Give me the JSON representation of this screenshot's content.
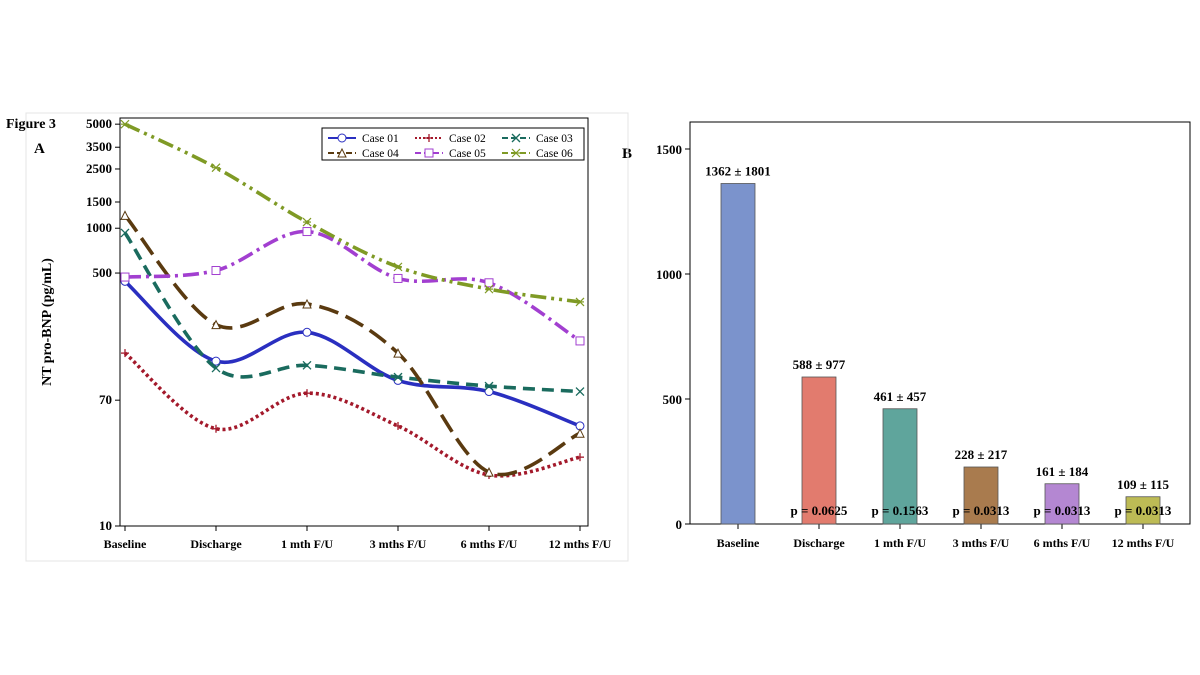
{
  "figure_label": "Figure 3",
  "panel_a_label": "A",
  "panel_b_label": "B",
  "colors": {
    "case01": "#2a2fc0",
    "case02": "#a3192b",
    "case03": "#1a6b5e",
    "case04": "#5a3a10",
    "case05": "#a23fd0",
    "case06": "#7f9a25",
    "bar_baseline": "#7b93cc",
    "bar_discharge": "#e27b6e",
    "bar_1mth": "#5fa59c",
    "bar_3mths": "#a97b4e",
    "bar_6mths": "#b487d2",
    "bar_12mths": "#bdbb55"
  },
  "chart_data": [
    {
      "type": "line",
      "panel": "A",
      "ylabel": "NT pro-BNP (pg/mL)",
      "xlabel": "",
      "yscale": "log",
      "ylim": [
        10,
        5500
      ],
      "yticks": [
        10,
        70,
        500,
        1000,
        1500,
        2500,
        3500,
        5000
      ],
      "categories": [
        "Baseline",
        "Discharge",
        "1 mth F/U",
        "3 mths F/U",
        "6 mths F/U",
        "12 mths F/U"
      ],
      "legend_position": "top-right",
      "series": [
        {
          "name": "Case 01",
          "marker": "circle",
          "dash": "solid",
          "values": [
            440,
            128,
            200,
            95,
            80,
            47
          ]
        },
        {
          "name": "Case 02",
          "marker": "plus",
          "dash": "dotted",
          "values": [
            145,
            45,
            78,
            47,
            22,
            29
          ]
        },
        {
          "name": "Case 03",
          "marker": "x",
          "dash": "dashed",
          "values": [
            930,
            115,
            120,
            100,
            87,
            80
          ]
        },
        {
          "name": "Case 04",
          "marker": "triangle",
          "dash": "longdash",
          "values": [
            1220,
            225,
            310,
            145,
            23,
            42
          ]
        },
        {
          "name": "Case 05",
          "marker": "square",
          "dash": "dashdot",
          "values": [
            470,
            520,
            950,
            460,
            430,
            175
          ]
        },
        {
          "name": "Case 06",
          "marker": "asterisk",
          "dash": "dashdotdot",
          "values": [
            5000,
            2550,
            1100,
            550,
            390,
            320
          ]
        }
      ]
    },
    {
      "type": "bar",
      "panel": "B",
      "xlabel": "",
      "ylabel": "",
      "ylim": [
        0,
        1500
      ],
      "yticks": [
        0,
        500,
        1000,
        1500
      ],
      "categories": [
        "Baseline",
        "Discharge",
        "1 mth F/U",
        "3 mths F/U",
        "6 mths F/U",
        "12 mths F/U"
      ],
      "values": [
        1362,
        588,
        461,
        228,
        161,
        109
      ],
      "value_labels": [
        "1362 ± 1801",
        "588 ± 977",
        "461 ± 457",
        "228 ± 217",
        "161 ± 184",
        "109 ± 115"
      ],
      "p_labels": [
        "",
        "p = 0.0625",
        "p = 0.1563",
        "p = 0.0313",
        "p = 0.0313",
        "p = 0.0313"
      ]
    }
  ]
}
